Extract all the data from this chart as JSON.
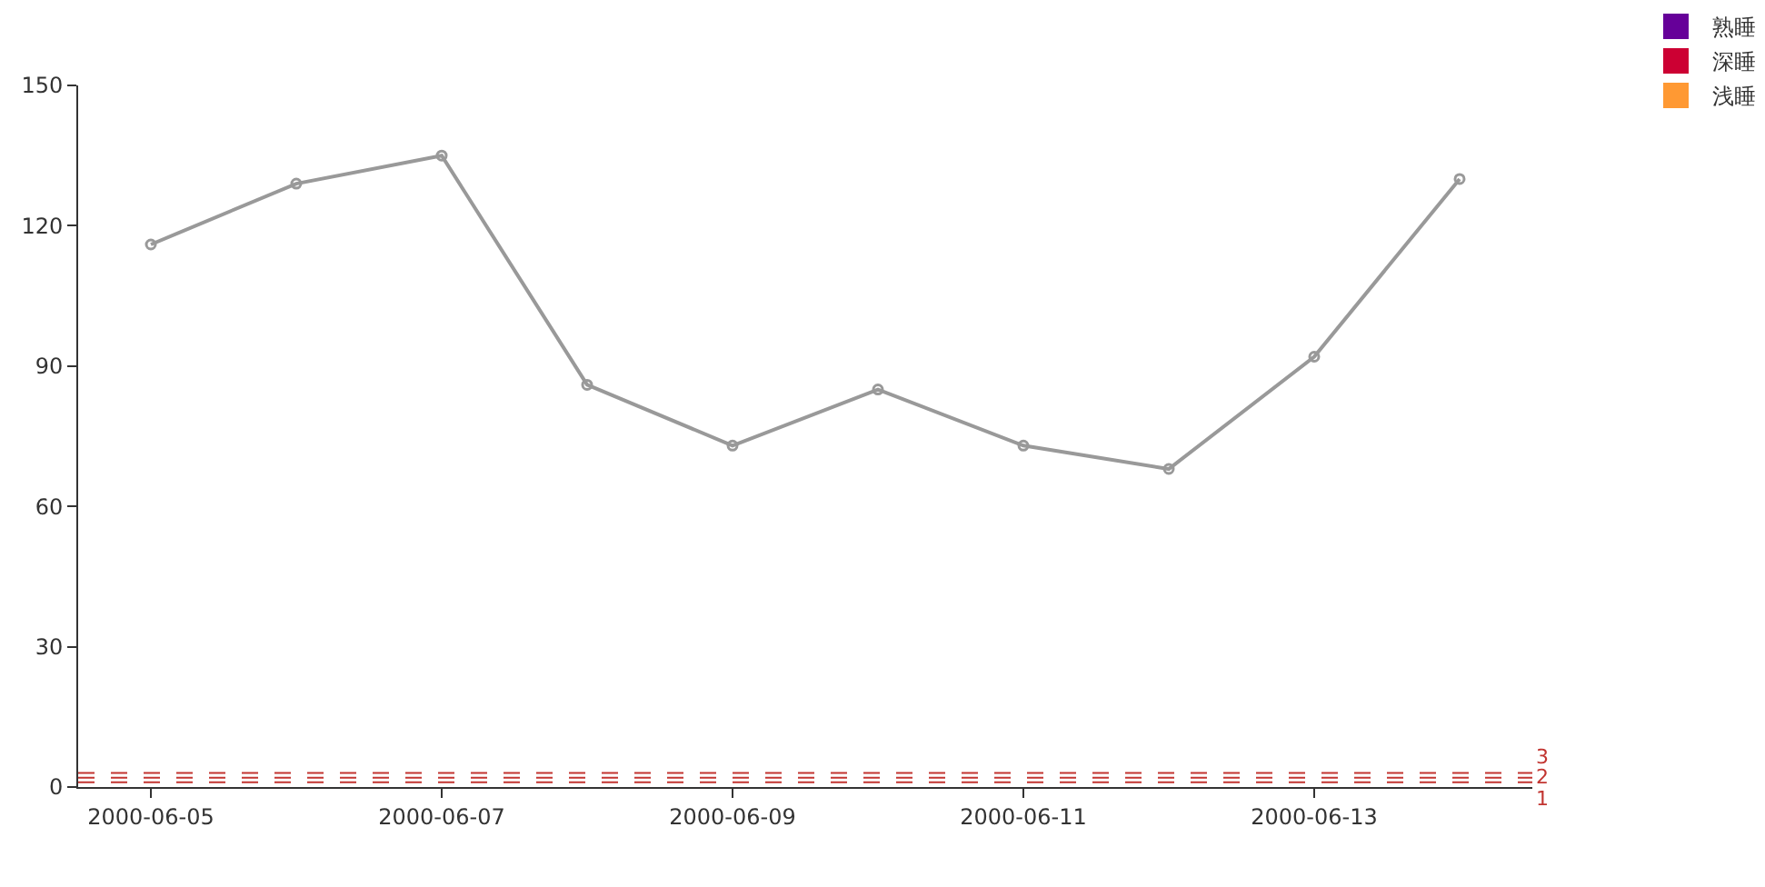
{
  "chart_data": {
    "type": "line",
    "categories": [
      "2000-06-05",
      null,
      "2000-06-07",
      null,
      "2000-06-09",
      null,
      "2000-06-11",
      null,
      "2000-06-13",
      null
    ],
    "series": [
      {
        "color": "#999999",
        "values": [
          116,
          129,
          135,
          86,
          73,
          85,
          73,
          68,
          92,
          130
        ]
      },
      {
        "type": "scatter",
        "name": "熟睡",
        "color": "#660099",
        "values": [
          null,
          null,
          null,
          null,
          null,
          null,
          null,
          null,
          null,
          null
        ]
      },
      {
        "type": "scatter",
        "name": "深睡",
        "color": "#cc0033",
        "values": [
          null,
          null,
          null,
          null,
          null,
          null,
          null,
          null,
          null,
          null
        ]
      },
      {
        "type": "scatter",
        "name": "浅睡",
        "color": "#ff9933",
        "values": [
          null,
          null,
          null,
          null,
          null,
          null,
          null,
          null,
          null,
          null
        ]
      }
    ],
    "ylim": [
      0,
      150
    ],
    "yticks": [
      0,
      30,
      60,
      90,
      120,
      150
    ],
    "ref_lines": [
      {
        "axis": "y",
        "value": 1,
        "label": "1",
        "color": "#c23531",
        "line_style": "dashed"
      },
      {
        "axis": "y",
        "value": 2,
        "label": "2",
        "color": "#c23531",
        "line_style": "dashed"
      },
      {
        "axis": "y",
        "value": 3,
        "label": "3",
        "color": "#c23531",
        "line_style": "dashed"
      }
    ],
    "marker": "circle",
    "line_style": "solid",
    "legend": "top right"
  }
}
